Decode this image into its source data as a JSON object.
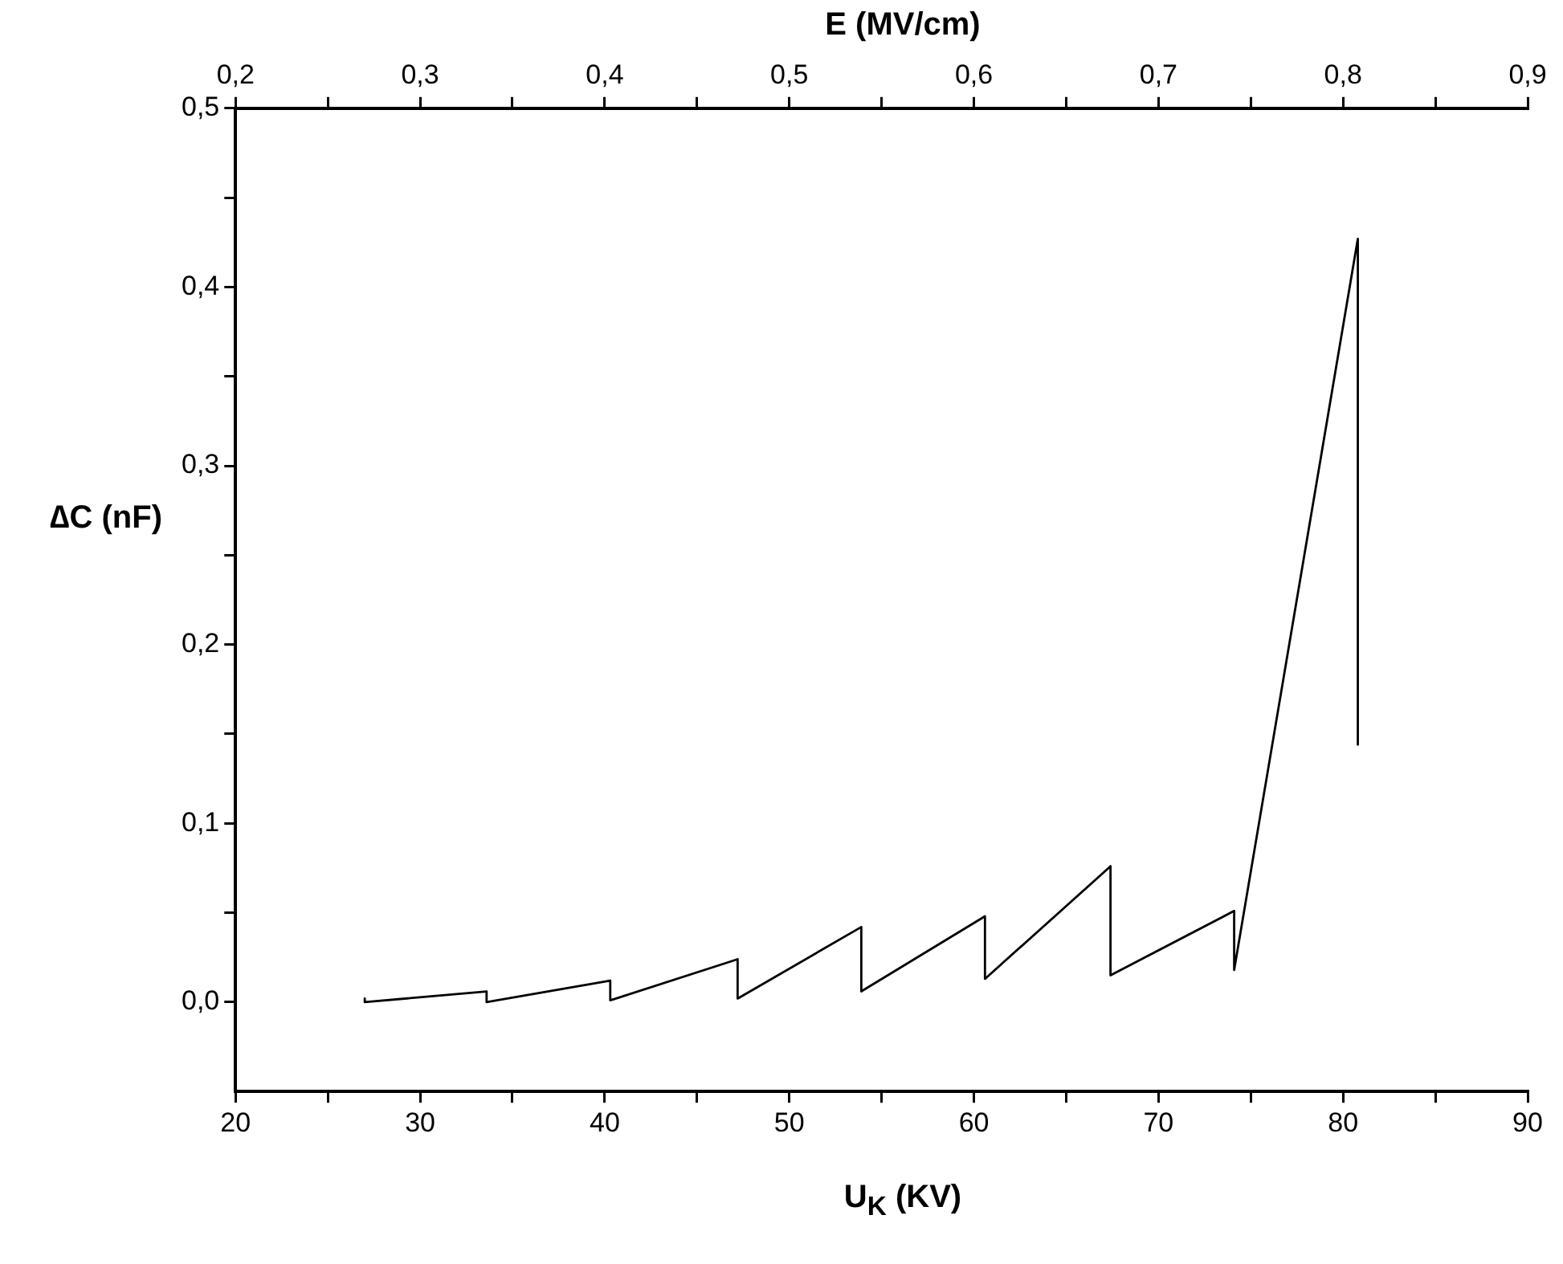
{
  "chart_data": {
    "type": "line",
    "xlabel": "U$_{K}$  (KV)",
    "ylabel": "∆C  (nF)",
    "x2label": "E (MV/cm)",
    "series": [
      {
        "color": "#000000",
        "x": [
          27.0,
          27.0,
          33.6,
          33.6,
          40.3,
          40.3,
          47.2,
          47.2,
          53.9,
          53.9,
          60.6,
          60.6,
          67.4,
          67.4,
          74.1,
          74.1,
          80.8,
          80.8
        ],
        "values": [
          0.002,
          0.0,
          0.006,
          0.0,
          0.012,
          0.001,
          0.024,
          0.002,
          0.042,
          0.006,
          0.048,
          0.013,
          0.076,
          0.015,
          0.051,
          0.018,
          0.427,
          0.144
        ]
      }
    ],
    "xlim": [
      20,
      90
    ],
    "xticks": [
      20,
      {
        "value": 25,
        "label": null
      },
      30,
      {
        "value": 35,
        "label": null
      },
      40,
      {
        "value": 45,
        "label": null
      },
      50,
      {
        "value": 55,
        "label": null
      },
      60,
      {
        "value": 65,
        "label": null
      },
      70,
      {
        "value": 75,
        "label": null
      },
      80,
      {
        "value": 85,
        "label": null
      },
      90
    ],
    "x2lim": [
      0.2,
      0.9
    ],
    "x2ticks": [
      {
        "value": 0.2,
        "label": "0,2"
      },
      {
        "value": 0.25,
        "label": null
      },
      {
        "value": 0.3,
        "label": "0,3"
      },
      {
        "value": 0.35,
        "label": null
      },
      {
        "value": 0.4,
        "label": "0,4"
      },
      {
        "value": 0.45,
        "label": null
      },
      {
        "value": 0.5,
        "label": "0,5"
      },
      {
        "value": 0.55,
        "label": null
      },
      {
        "value": 0.6,
        "label": "0,6"
      },
      {
        "value": 0.65,
        "label": null
      },
      {
        "value": 0.7,
        "label": "0,7"
      },
      {
        "value": 0.75,
        "label": null
      },
      {
        "value": 0.8,
        "label": "0,8"
      },
      {
        "value": 0.85,
        "label": null
      },
      {
        "value": 0.9,
        "label": "0,9"
      }
    ],
    "ylim": [
      -0.05,
      0.5
    ],
    "yticks": [
      {
        "value": 0,
        "label": "0,0"
      },
      {
        "value": 0.05,
        "label": null
      },
      {
        "value": 0.1,
        "label": "0,1"
      },
      {
        "value": 0.15,
        "label": null
      },
      {
        "value": 0.2,
        "label": "0,2"
      },
      {
        "value": 0.25,
        "label": null
      },
      {
        "value": 0.3,
        "label": "0,3"
      },
      {
        "value": 0.35,
        "label": null
      },
      {
        "value": 0.4,
        "label": "0,4"
      },
      {
        "value": 0.45,
        "label": null
      },
      {
        "value": 0.5,
        "label": "0,5"
      }
    ],
    "grid": false,
    "legend": false,
    "marker": "none",
    "line_style": "solid"
  }
}
